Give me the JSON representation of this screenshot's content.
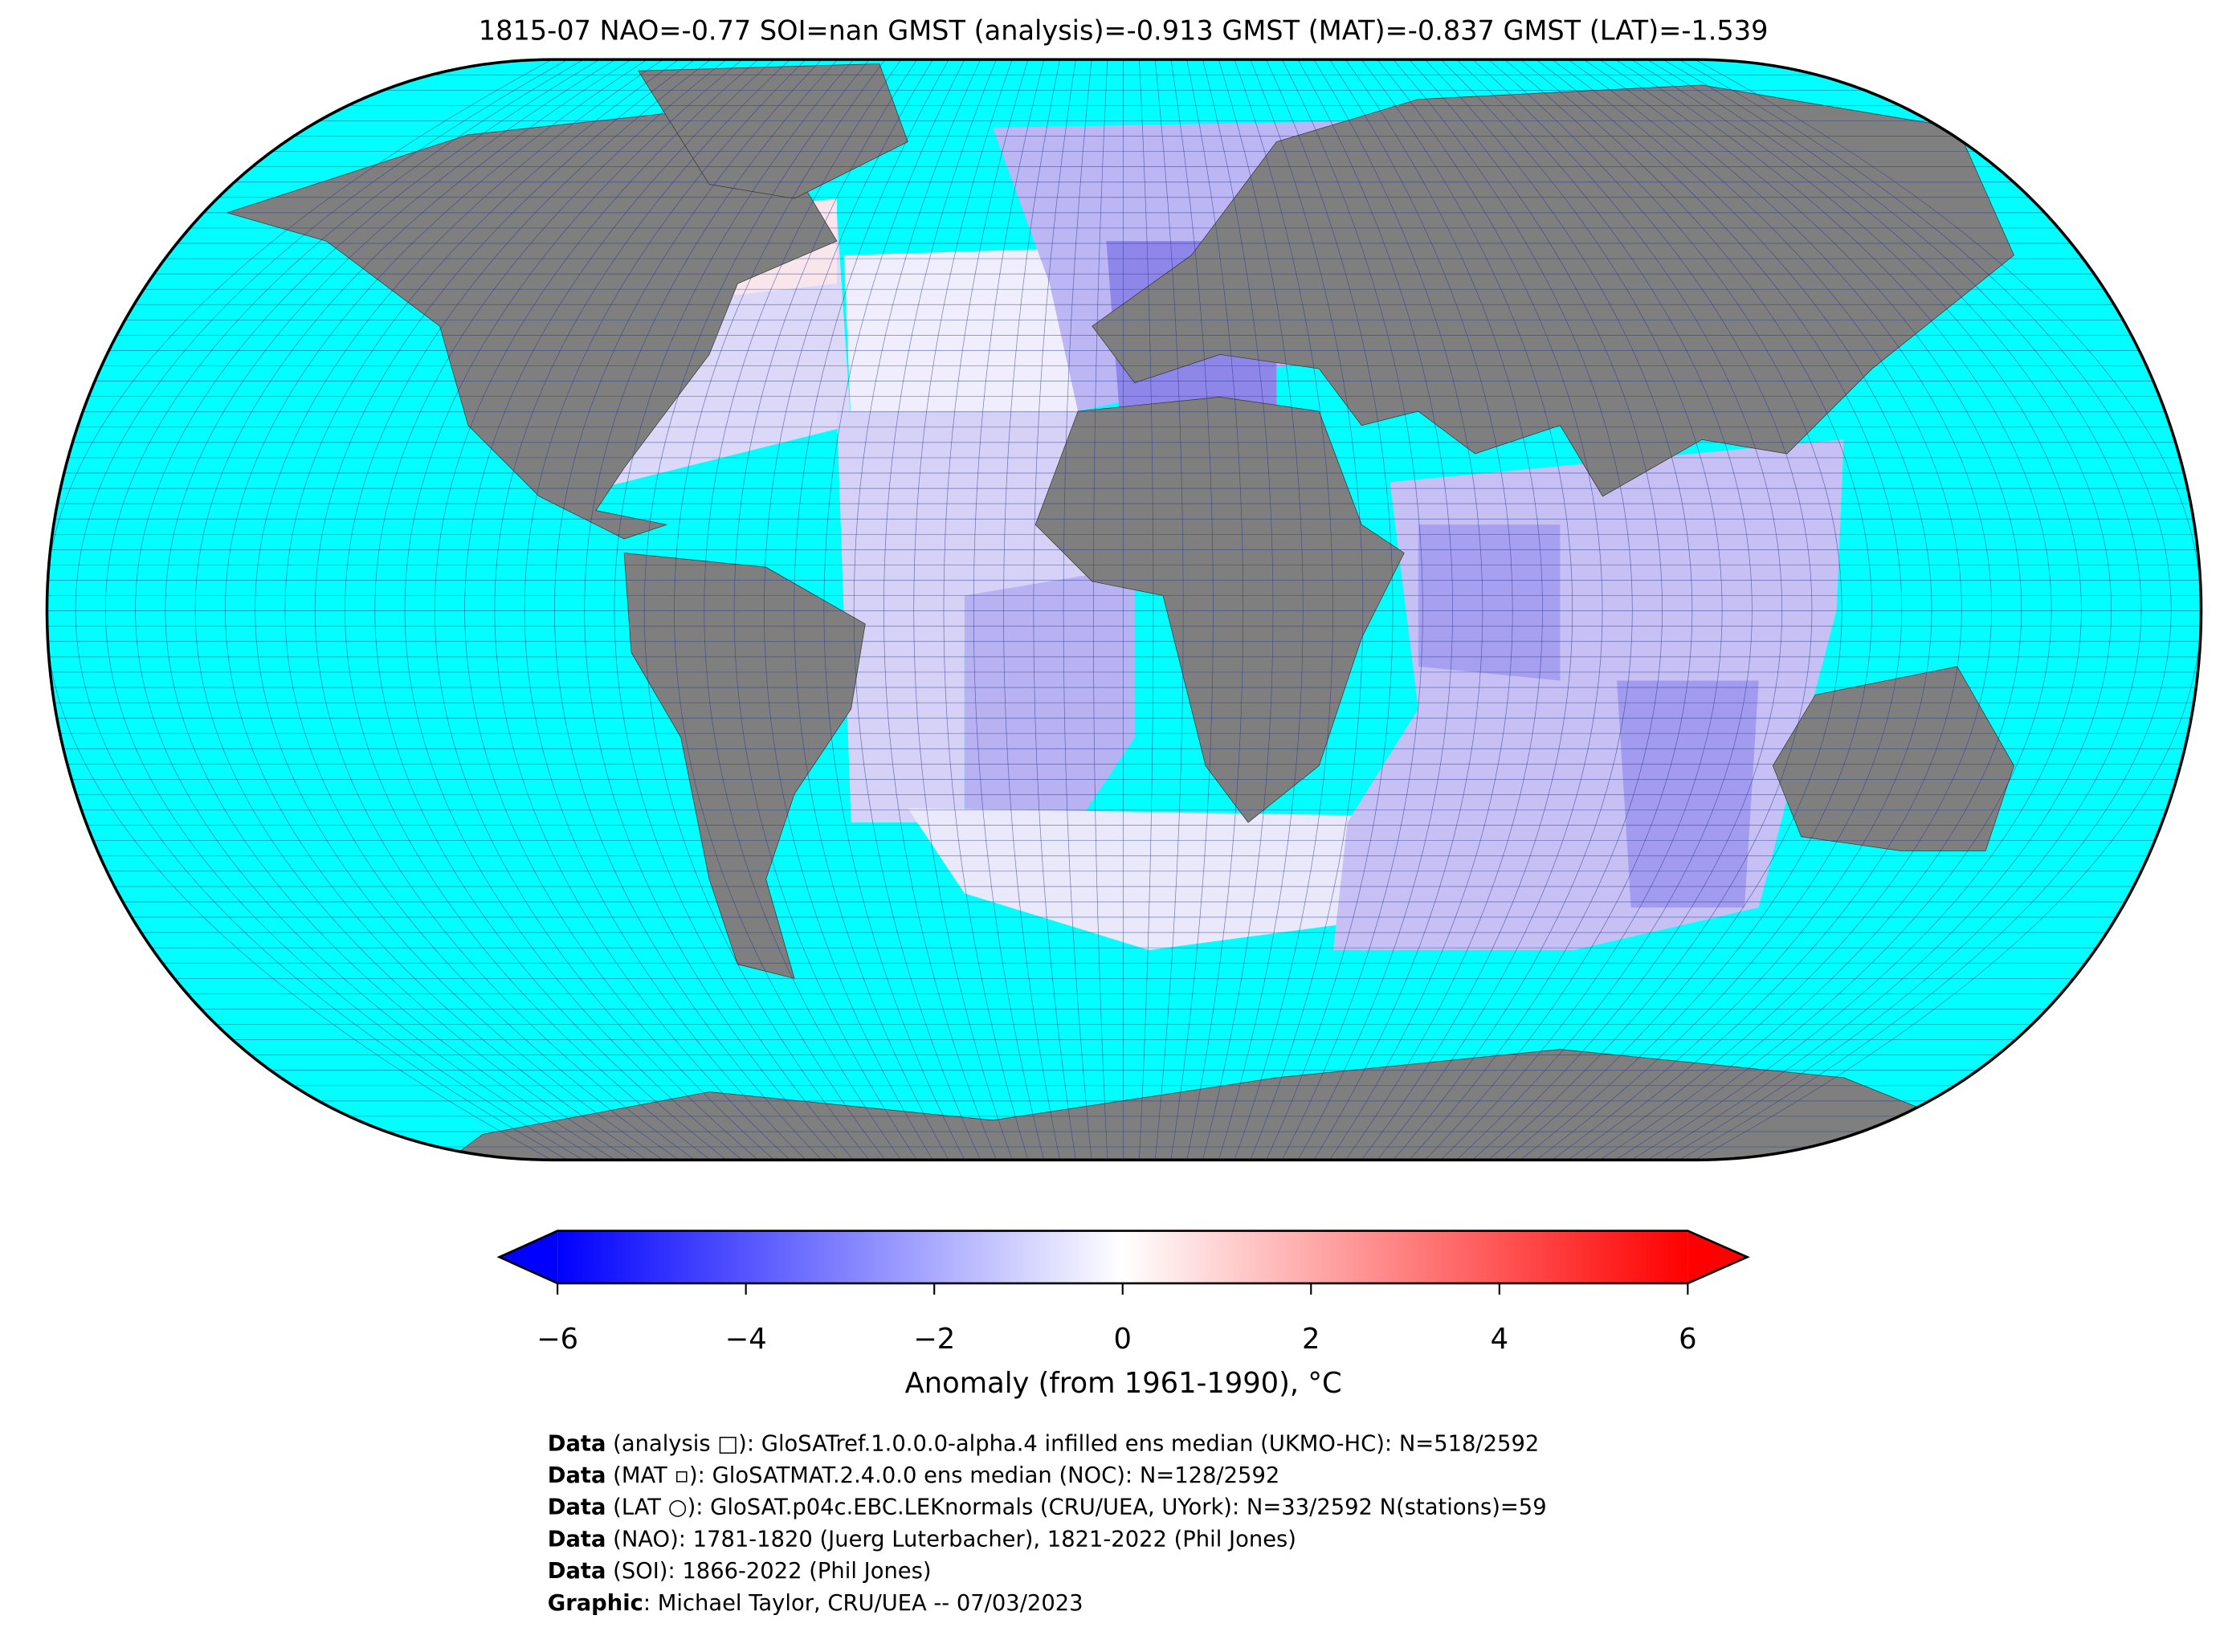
{
  "title": "1815-07 NAO=-0.77 SOI=nan GMST (analysis)=-0.913 GMST (MAT)=-0.837 GMST (LAT)=-1.539",
  "colorbar": {
    "label": "Anomaly (from 1961-1990), °C",
    "lim": [
      -6,
      6
    ],
    "colors": [
      "#0000ff",
      "#ffffff",
      "#ff0000"
    ],
    "ticks": [
      {
        "value": -6,
        "label": "−6"
      },
      {
        "value": -4,
        "label": "−4"
      },
      {
        "value": -2,
        "label": "−2"
      },
      0,
      2,
      4,
      6
    ]
  },
  "credits": [
    {
      "label": "Data",
      "text": " (analysis □): GloSATref.1.0.0.0-alpha.4 infilled ens median (UKMO-HC): N=518/2592"
    },
    {
      "label": "Data",
      "text": " (MAT ▫): GloSATMAT.2.4.0.0 ens median (NOC): N=128/2592"
    },
    {
      "label": "Data",
      "text": " (LAT ○): GloSAT.p04c.EBC.LEKnormals (CRU/UEA, UYork): N=33/2592 N(stations)=59"
    },
    {
      "label": "Data",
      "text": " (NAO): 1781-1820 (Juerg Luterbacher), 1821-2022 (Phil Jones)"
    },
    {
      "label": "Data",
      "text": " (SOI): 1866-2022 (Phil Jones)"
    },
    {
      "label": "Graphic",
      "text": ": Michael Taylor, CRU/UEA -- 07/03/2023"
    }
  ]
}
